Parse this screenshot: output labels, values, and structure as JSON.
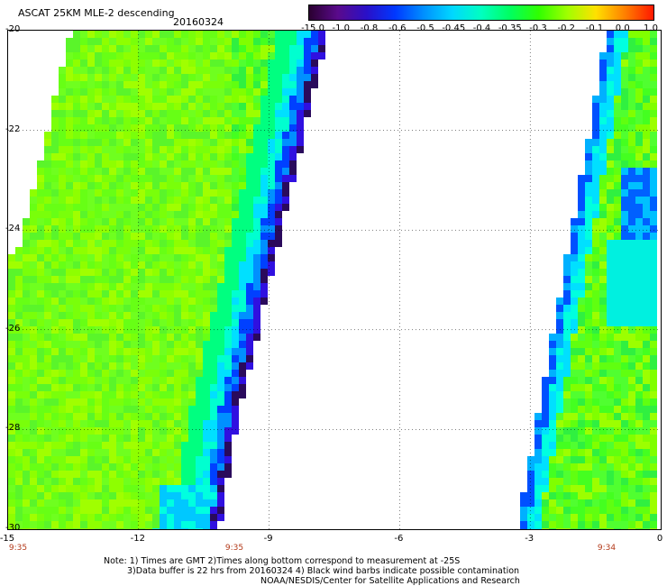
{
  "header": {
    "title": "ASCAT 25KM MLE-2 descending",
    "date": "20160324"
  },
  "colorbar": {
    "tick_labels": [
      "-15.0",
      "-1.0",
      "-0.8",
      "-0.6",
      "-0.5",
      "-0.45",
      "-0.4",
      "-0.35",
      "-0.3",
      "-0.2",
      "-0.1",
      "0.0",
      "1.0"
    ],
    "colors": [
      "#2a0030",
      "#5a0a8c",
      "#2a10c8",
      "#0038ff",
      "#0090ff",
      "#00d8ff",
      "#00ffc0",
      "#00ff60",
      "#30ff00",
      "#a0ff00",
      "#ffe000",
      "#ff8000",
      "#ff1800"
    ]
  },
  "map": {
    "lat_labels": [
      "-20",
      "-22",
      "-24",
      "-26",
      "-28",
      "-30"
    ],
    "lon_labels": [
      "-15",
      "-12",
      "-9",
      "-6",
      "-3",
      "0"
    ],
    "time_labels": [
      "9:35",
      "9:35",
      "9:34"
    ],
    "lat_range": [
      -30,
      -20
    ],
    "lon_range": [
      -15,
      0
    ]
  },
  "notes": {
    "line1": "Note: 1) Times are GMT 2)Times along bottom correspond to measurement at -25S",
    "line2": "3)Data buffer is 22 hrs from 20160324 4) Black wind barbs indicate possible contamination",
    "line3": "NOAA/NESDIS/Center for Satellite Applications and Research"
  }
}
